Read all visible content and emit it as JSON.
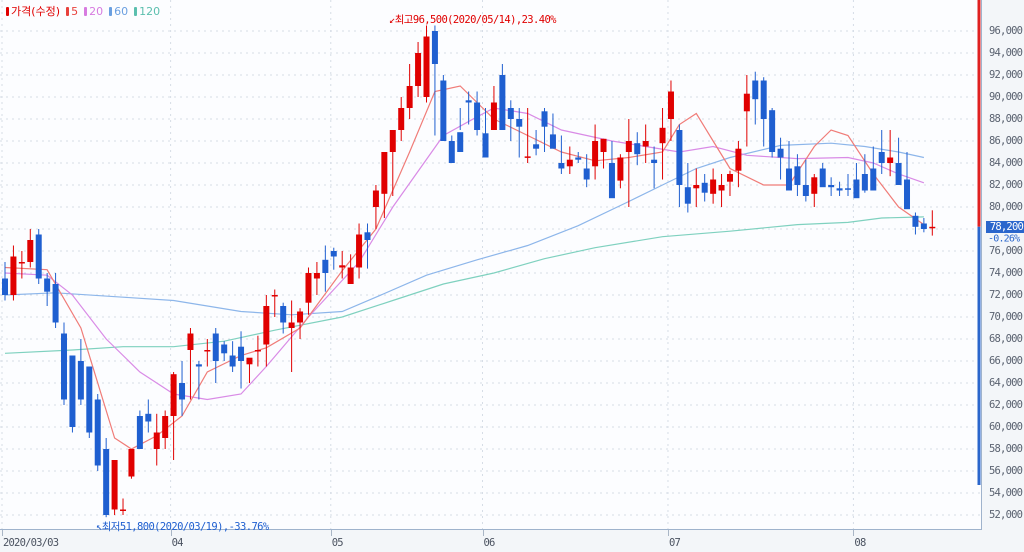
{
  "legend": {
    "price_label": "가격(수정)",
    "items": [
      {
        "label": "5",
        "color": "#e8413c"
      },
      {
        "label": "20",
        "color": "#d77be0"
      },
      {
        "label": "60",
        "color": "#6a9fe0"
      },
      {
        "label": "120",
        "color": "#5bbfae"
      }
    ],
    "price_color": "#e00000"
  },
  "annotations": {
    "high": "최고96,500(2020/05/14),23.40%",
    "low": "최저51,800(2020/03/19),-33.76%"
  },
  "current": {
    "price": "78,200",
    "change": "-0.26%"
  },
  "colors": {
    "up": "#e00000",
    "down": "#1f5fd0",
    "grid": "#d6dde6",
    "ma5": "#f07c78",
    "ma20": "#d98be6",
    "ma60": "#8db6ea",
    "ma120": "#7fd1bf"
  },
  "chart_data": {
    "type": "candlestick",
    "title": "",
    "legend": [
      "가격(수정)",
      "5",
      "20",
      "60",
      "120"
    ],
    "xlabel": "",
    "ylabel": "",
    "ylim": [
      51000,
      98000
    ],
    "y_ticks": [
      "96,000",
      "94,000",
      "92,000",
      "90,000",
      "88,000",
      "86,000",
      "84,000",
      "82,000",
      "80,000",
      "78,000",
      "76,000",
      "74,000",
      "72,000",
      "70,000",
      "68,000",
      "66,000",
      "64,000",
      "62,000",
      "60,000",
      "58,000",
      "56,000",
      "54,000",
      "52,000"
    ],
    "x_ticks": [
      {
        "label": "2020/03/03",
        "index": 0
      },
      {
        "label": "04",
        "index": 20
      },
      {
        "label": "05",
        "index": 39
      },
      {
        "label": "06",
        "index": 57
      },
      {
        "label": "07",
        "index": 79
      },
      {
        "label": "08",
        "index": 101
      }
    ],
    "grid": true,
    "ohlc": [
      [
        73500,
        75000,
        71500,
        72000
      ],
      [
        72000,
        76500,
        71500,
        75500
      ],
      [
        75000,
        76000,
        73500,
        75000
      ],
      [
        75000,
        78000,
        74500,
        77000
      ],
      [
        77500,
        78000,
        73000,
        73500
      ],
      [
        73500,
        74000,
        71000,
        72300
      ],
      [
        73000,
        74000,
        69000,
        69500
      ],
      [
        68500,
        69500,
        62000,
        62500
      ],
      [
        66500,
        66500,
        59500,
        60000
      ],
      [
        66000,
        68000,
        62000,
        62500
      ],
      [
        65500,
        65500,
        59000,
        59500
      ],
      [
        62500,
        63000,
        56000,
        56500
      ],
      [
        58000,
        59000,
        51800,
        52000
      ],
      [
        52500,
        57000,
        52000,
        57000
      ],
      [
        52500,
        53500,
        52000,
        52500
      ],
      [
        55500,
        57200,
        55300,
        58000
      ],
      [
        61000,
        61500,
        58800,
        58000
      ],
      [
        61200,
        62500,
        59500,
        60500
      ],
      [
        58000,
        61200,
        56500,
        59500
      ],
      [
        59000,
        61500,
        58000,
        61000
      ],
      [
        61000,
        65000,
        57000,
        64800
      ],
      [
        64000,
        66000,
        61000,
        62500
      ],
      [
        67000,
        69000,
        62500,
        68500
      ],
      [
        65700,
        66000,
        62500,
        65500
      ],
      [
        67000,
        68000,
        65500,
        67000
      ],
      [
        68500,
        69000,
        64000,
        66000
      ],
      [
        67500,
        67800,
        66000,
        66700
      ],
      [
        66500,
        67800,
        65000,
        65500
      ],
      [
        67300,
        68700,
        63500,
        66000
      ],
      [
        65700,
        66000,
        64000,
        66300
      ],
      [
        67000,
        68300,
        65500,
        67000
      ],
      [
        67500,
        72000,
        65500,
        71000
      ],
      [
        72000,
        72500,
        70000,
        72000
      ],
      [
        71000,
        71300,
        68500,
        69500
      ],
      [
        69000,
        71500,
        65000,
        69500
      ],
      [
        69500,
        70800,
        68000,
        70500
      ],
      [
        71300,
        74500,
        70200,
        74000
      ],
      [
        73500,
        75000,
        72000,
        74000
      ],
      [
        75200,
        76500,
        72300,
        74000
      ],
      [
        76000,
        76300,
        74300,
        75500
      ],
      [
        74500,
        76000,
        73500,
        74700
      ],
      [
        73000,
        75700,
        73000,
        74500
      ],
      [
        74500,
        78500,
        73500,
        77500
      ],
      [
        77700,
        78500,
        74400,
        77000
      ],
      [
        80000,
        82000,
        78000,
        81500
      ],
      [
        81200,
        85000,
        79000,
        85000
      ],
      [
        85000,
        87000,
        81000,
        87000
      ],
      [
        87000,
        90000,
        86000,
        89000
      ],
      [
        89000,
        93000,
        88000,
        91000
      ],
      [
        91000,
        95000,
        90000,
        94000
      ],
      [
        90000,
        96500,
        89500,
        95500
      ],
      [
        96000,
        96500,
        86500,
        93000
      ],
      [
        91500,
        92000,
        87000,
        86000
      ],
      [
        86000,
        86500,
        84000,
        84000
      ],
      [
        86800,
        89000,
        87000,
        85000
      ],
      [
        89700,
        90500,
        87500,
        89500
      ],
      [
        89500,
        90500,
        86500,
        87000
      ],
      [
        86700,
        89000,
        85000,
        84500
      ],
      [
        87000,
        91000,
        88000,
        89500
      ],
      [
        92000,
        93000,
        88000,
        87000
      ],
      [
        89000,
        89700,
        86000,
        88000
      ],
      [
        88000,
        89000,
        84500,
        87300
      ],
      [
        84500,
        89000,
        84000,
        84600
      ],
      [
        85700,
        87000,
        84700,
        85300
      ],
      [
        88700,
        89000,
        85000,
        87300
      ],
      [
        86600,
        88500,
        85500,
        85300
      ],
      [
        84000,
        86500,
        83000,
        83500
      ],
      [
        83700,
        85500,
        83000,
        84300
      ],
      [
        84500,
        85000,
        84000,
        84300
      ],
      [
        83500,
        84800,
        81800,
        82500
      ],
      [
        83700,
        87500,
        82500,
        86000
      ],
      [
        85000,
        86200,
        83500,
        86200
      ],
      [
        84000,
        86000,
        82000,
        80800
      ],
      [
        82400,
        84800,
        81700,
        84500
      ],
      [
        85000,
        88000,
        80000,
        86000
      ],
      [
        85800,
        86800,
        83800,
        84800
      ],
      [
        85500,
        87500,
        84000,
        86000
      ],
      [
        84300,
        85500,
        81700,
        84000
      ],
      [
        85800,
        89000,
        82500,
        87200
      ],
      [
        88000,
        91500,
        86000,
        90500
      ],
      [
        87000,
        87500,
        80000,
        82000
      ],
      [
        81800,
        84000,
        79500,
        80300
      ],
      [
        81700,
        83500,
        80000,
        82000
      ],
      [
        82200,
        83000,
        80500,
        81300
      ],
      [
        81200,
        83500,
        80300,
        82500
      ],
      [
        81500,
        83000,
        80000,
        82000
      ],
      [
        82300,
        83300,
        81000,
        83000
      ],
      [
        83300,
        86000,
        81800,
        85300
      ],
      [
        88700,
        92000,
        85500,
        90300
      ],
      [
        91500,
        92300,
        87500,
        89800
      ],
      [
        91500,
        91800,
        85500,
        88000
      ],
      [
        88800,
        89000,
        84500,
        85000
      ],
      [
        85300,
        86300,
        82500,
        84500
      ],
      [
        83500,
        86000,
        81500,
        81500
      ],
      [
        83700,
        84800,
        81000,
        82000
      ],
      [
        82000,
        84300,
        80500,
        81000
      ],
      [
        81200,
        83000,
        80000,
        82700
      ],
      [
        83500,
        84000,
        82000,
        81800
      ],
      [
        82000,
        82700,
        81000,
        81800
      ],
      [
        81700,
        82300,
        81000,
        81500
      ],
      [
        81700,
        83000,
        81000,
        81600
      ],
      [
        82500,
        84000,
        81000,
        80800
      ],
      [
        83000,
        84800,
        81300,
        81500
      ],
      [
        83500,
        85500,
        82000,
        81500
      ],
      [
        85000,
        87000,
        83000,
        84000
      ],
      [
        84000,
        87000,
        82800,
        84500
      ],
      [
        84000,
        86300,
        83000,
        82000
      ],
      [
        82500,
        85000,
        80000,
        79800
      ],
      [
        79200,
        79500,
        77500,
        78200
      ],
      [
        78500,
        79000,
        77700,
        78000
      ],
      [
        78200,
        79700,
        77400,
        78200
      ]
    ],
    "series_note": "ohlc values estimated from pixel positions; order = [open, high, low, close]; red = close >= open"
  },
  "ma_lines": {
    "ma5": [
      [
        0,
        74500
      ],
      [
        5,
        74300
      ],
      [
        9,
        69000
      ],
      [
        13,
        59000
      ],
      [
        15,
        58000
      ],
      [
        18,
        59200
      ],
      [
        21,
        61000
      ],
      [
        24,
        65000
      ],
      [
        28,
        66500
      ],
      [
        31,
        67200
      ],
      [
        35,
        69000
      ],
      [
        40,
        74200
      ],
      [
        44,
        78000
      ],
      [
        48,
        85000
      ],
      [
        51,
        90500
      ],
      [
        54,
        91000
      ],
      [
        58,
        88000
      ],
      [
        62,
        86500
      ],
      [
        66,
        85000
      ],
      [
        70,
        84200
      ],
      [
        74,
        84500
      ],
      [
        78,
        85000
      ],
      [
        80,
        87500
      ],
      [
        82,
        88500
      ],
      [
        84,
        86000
      ],
      [
        86,
        83500
      ],
      [
        90,
        82000
      ],
      [
        93,
        82000
      ],
      [
        96,
        85500
      ],
      [
        98,
        87000
      ],
      [
        100,
        86500
      ],
      [
        103,
        83000
      ],
      [
        106,
        80000
      ],
      [
        109,
        78400
      ]
    ],
    "ma20": [
      [
        0,
        74000
      ],
      [
        5,
        73800
      ],
      [
        8,
        72000
      ],
      [
        12,
        68000
      ],
      [
        16,
        65000
      ],
      [
        20,
        63000
      ],
      [
        24,
        62500
      ],
      [
        28,
        63000
      ],
      [
        31,
        65500
      ],
      [
        36,
        70000
      ],
      [
        42,
        75000
      ],
      [
        46,
        80000
      ],
      [
        52,
        86500
      ],
      [
        56,
        88200
      ],
      [
        58,
        89000
      ],
      [
        62,
        88500
      ],
      [
        66,
        87000
      ],
      [
        72,
        86000
      ],
      [
        76,
        85500
      ],
      [
        80,
        85000
      ],
      [
        84,
        85500
      ],
      [
        88,
        84700
      ],
      [
        94,
        84400
      ],
      [
        100,
        84500
      ],
      [
        103,
        84000
      ],
      [
        106,
        83000
      ],
      [
        109,
        82200
      ]
    ],
    "ma60": [
      [
        0,
        72000
      ],
      [
        6,
        72200
      ],
      [
        14,
        71800
      ],
      [
        20,
        71500
      ],
      [
        28,
        70500
      ],
      [
        34,
        70200
      ],
      [
        40,
        70500
      ],
      [
        44,
        71800
      ],
      [
        50,
        73800
      ],
      [
        56,
        75200
      ],
      [
        62,
        76500
      ],
      [
        68,
        78300
      ],
      [
        74,
        80500
      ],
      [
        78,
        82000
      ],
      [
        82,
        83500
      ],
      [
        86,
        84500
      ],
      [
        92,
        85600
      ],
      [
        98,
        85800
      ],
      [
        102,
        85500
      ],
      [
        106,
        85000
      ],
      [
        109,
        84500
      ]
    ],
    "ma120": [
      [
        0,
        66700
      ],
      [
        8,
        67000
      ],
      [
        14,
        67300
      ],
      [
        20,
        67300
      ],
      [
        26,
        67800
      ],
      [
        32,
        68800
      ],
      [
        40,
        70000
      ],
      [
        46,
        71500
      ],
      [
        52,
        73000
      ],
      [
        58,
        74000
      ],
      [
        64,
        75300
      ],
      [
        70,
        76300
      ],
      [
        78,
        77300
      ],
      [
        86,
        77800
      ],
      [
        94,
        78400
      ],
      [
        100,
        78600
      ],
      [
        104,
        79000
      ],
      [
        109,
        79100
      ]
    ]
  }
}
